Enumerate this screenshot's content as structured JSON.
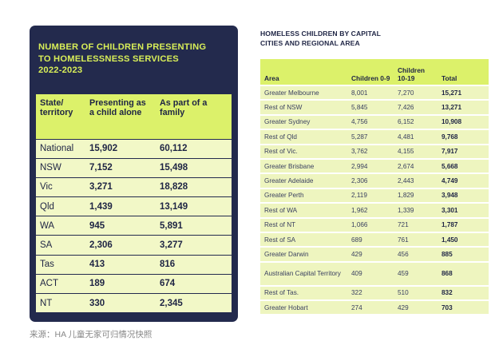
{
  "left": {
    "title_lines": [
      "NUMBER OF CHILDREN PRESENTING",
      "TO HOMELESSNESS SERVICES",
      "2022-2023"
    ],
    "headers": [
      "State/\nterritory",
      "Presenting as a child alone",
      "As part of a family"
    ],
    "rows": [
      [
        "National",
        "15,902",
        "60,112"
      ],
      [
        "NSW",
        "7,152",
        "15,498"
      ],
      [
        "Vic",
        "3,271",
        "18,828"
      ],
      [
        "Qld",
        "1,439",
        "13,149"
      ],
      [
        "WA",
        "945",
        "5,891"
      ],
      [
        "SA",
        "2,306",
        "3,277"
      ],
      [
        "Tas",
        "413",
        "816"
      ],
      [
        "ACT",
        "189",
        "674"
      ],
      [
        "NT",
        "330",
        "2,345"
      ]
    ]
  },
  "right": {
    "title_lines": [
      "HOMELESS CHILDREN BY CAPITAL",
      "CITIES AND REGIONAL AREA"
    ],
    "headers": [
      "Area",
      "Children 0-9",
      "Children 10-19",
      "Total"
    ],
    "rows": [
      [
        "Greater Melbourne",
        "8,001",
        "7,270",
        "15,271"
      ],
      [
        "Rest of NSW",
        "5,845",
        "7,426",
        "13,271"
      ],
      [
        "Greater Sydney",
        "4,756",
        "6,152",
        "10,908"
      ],
      [
        "Rest of Qld",
        "5,287",
        "4,481",
        "9,768"
      ],
      [
        "Rest of Vic.",
        "3,762",
        "4,155",
        "7,917"
      ],
      [
        "Greater Brisbane",
        "2,994",
        "2,674",
        "5,668"
      ],
      [
        "Greater Adelaide",
        "2,306",
        "2,443",
        "4,749"
      ],
      [
        "Greater Perth",
        "2,119",
        "1,829",
        "3,948"
      ],
      [
        "Rest of WA",
        "1,962",
        "1,339",
        "3,301"
      ],
      [
        "Rest of NT",
        "1,066",
        "721",
        "1,787"
      ],
      [
        "Rest of SA",
        "689",
        "761",
        "1,450"
      ],
      [
        "Greater Darwin",
        "429",
        "456",
        "885"
      ],
      [
        "Australian Capital Territory",
        "409",
        "459",
        "868"
      ],
      [
        "Rest of Tas.",
        "322",
        "510",
        "832"
      ],
      [
        "Greater Hobart",
        "274",
        "429",
        "703"
      ]
    ]
  },
  "source": "来源：HA 儿童无家可归情况快照",
  "colors": {
    "navy": "#232a4d",
    "lime": "#dcf16a",
    "pale": "#f2f8c7"
  }
}
